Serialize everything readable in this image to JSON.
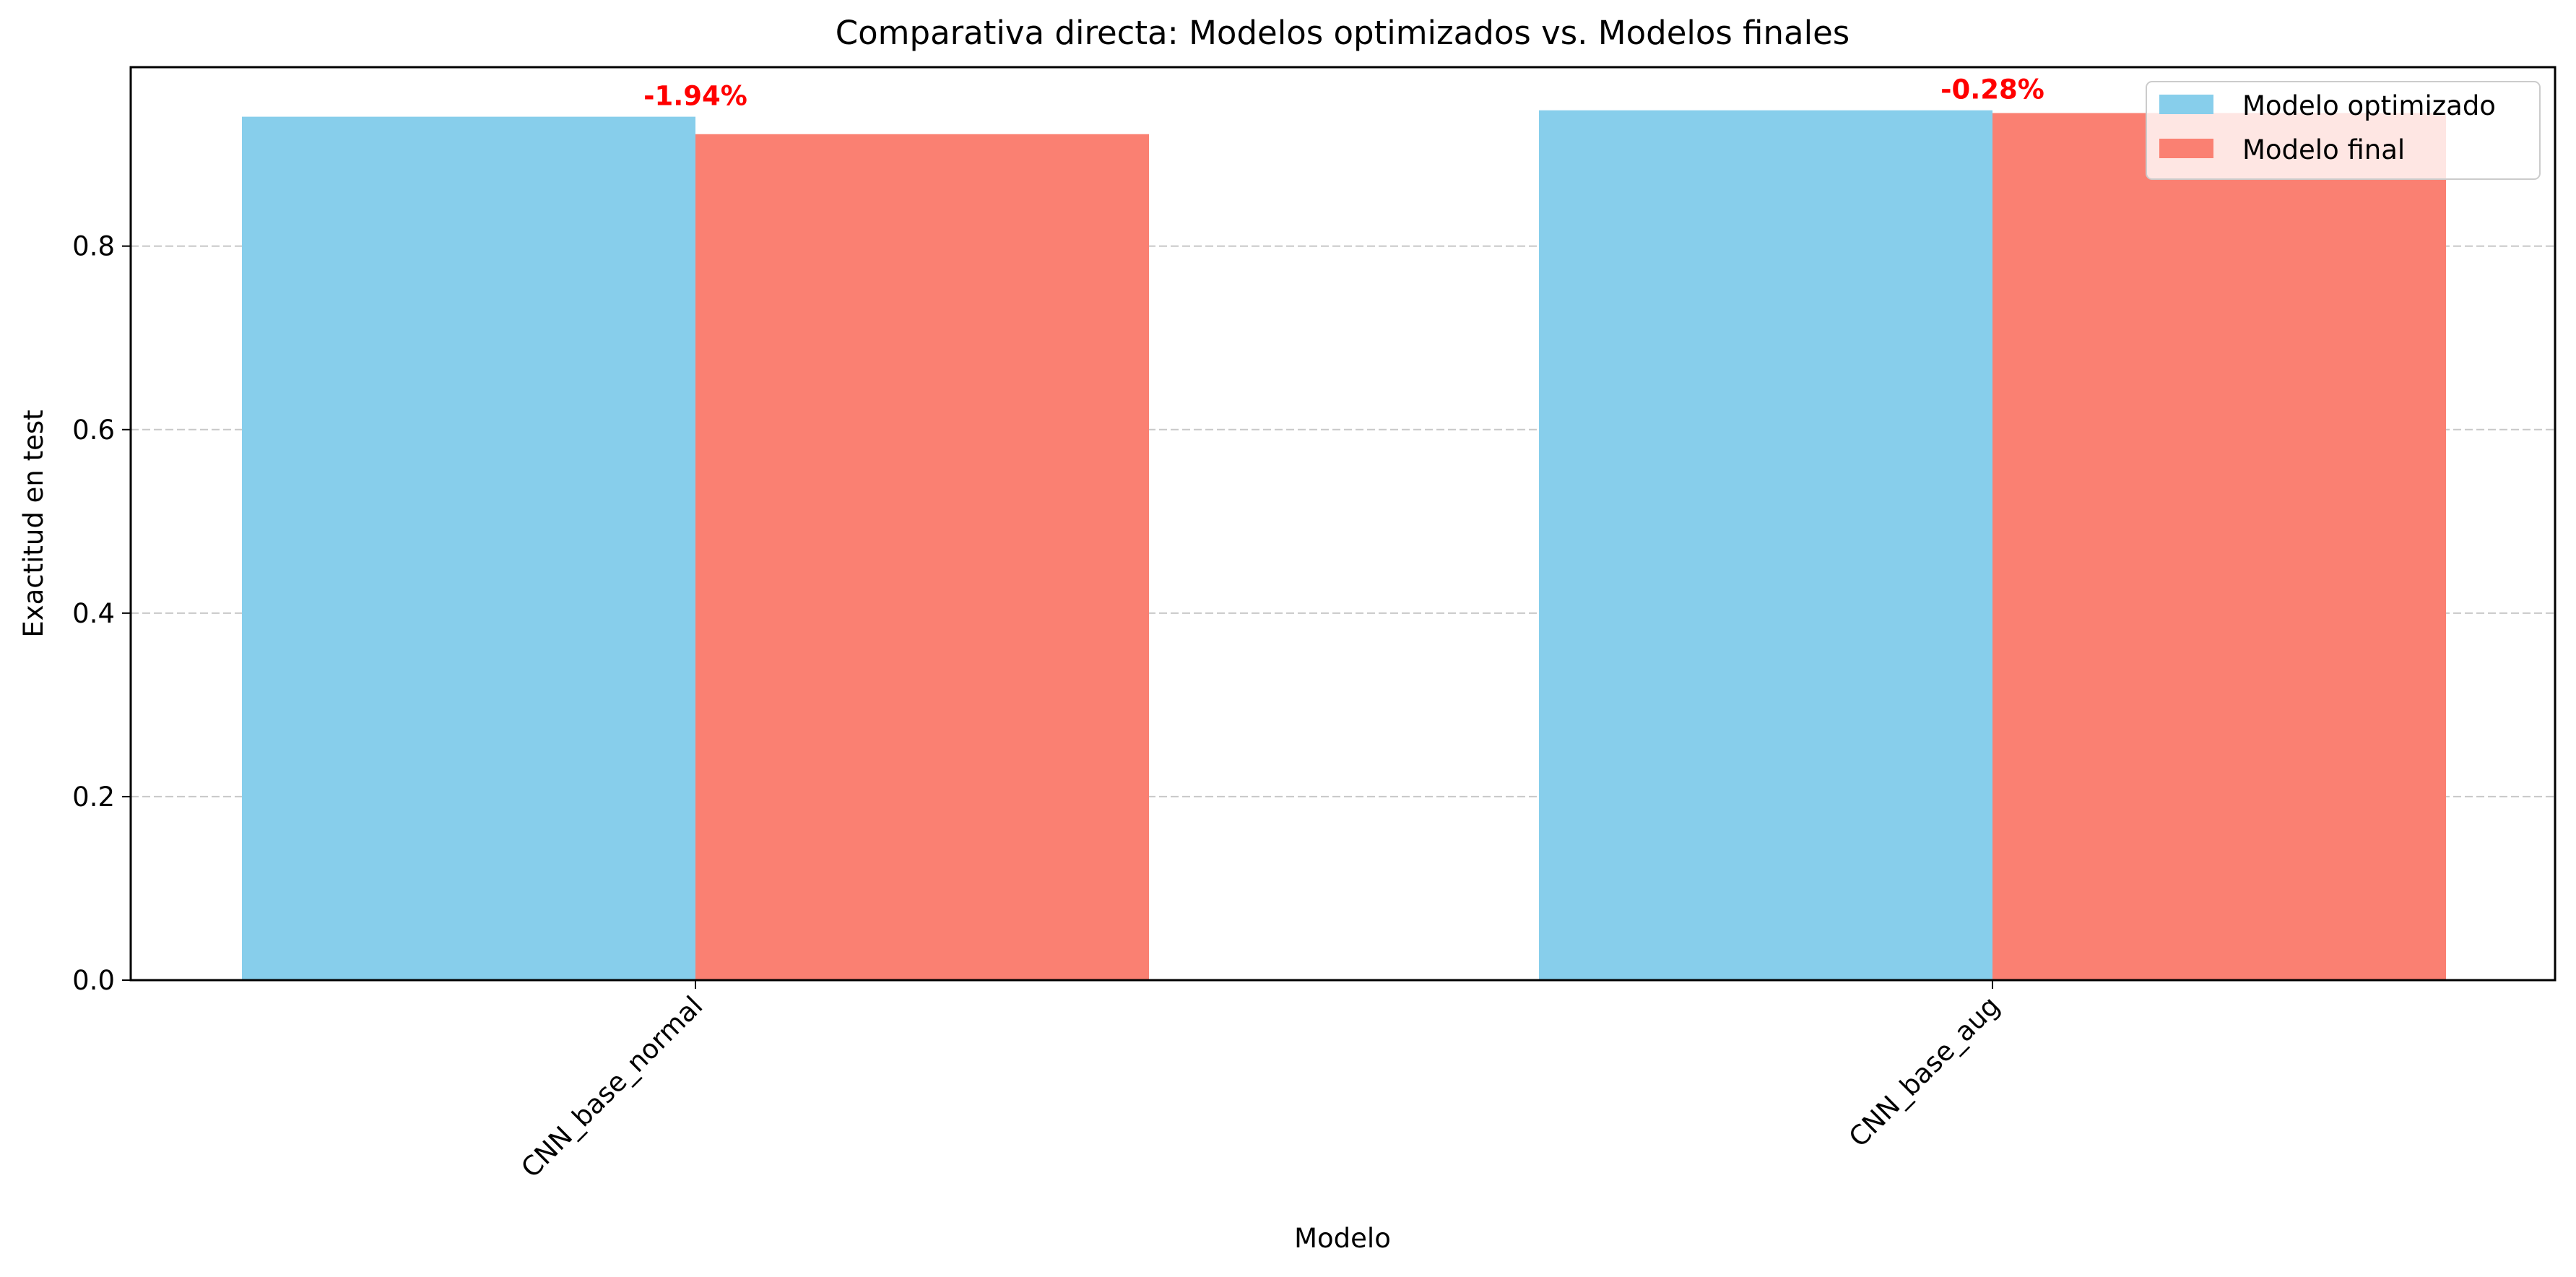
{
  "chart_data": {
    "type": "bar",
    "title": "Comparativa directa: Modelos optimizados vs. Modelos finales",
    "xlabel": "Modelo",
    "ylabel": "Exactitud en test",
    "categories": [
      "CNN_base_normal",
      "CNN_base_aug"
    ],
    "series": [
      {
        "name": "Modelo optimizado",
        "values": [
          0.941,
          0.948
        ],
        "color": "#87CEEB"
      },
      {
        "name": "Modelo final",
        "values": [
          0.922,
          0.945
        ],
        "color": "#FA8072"
      }
    ],
    "annotations": [
      "-1.94%",
      "-0.28%"
    ],
    "annotation_color": "#FF0000",
    "ylim": [
      0,
      0.995
    ],
    "yticks": [
      0.0,
      0.2,
      0.4,
      0.6,
      0.8
    ],
    "ytick_labels": [
      "0.0",
      "0.2",
      "0.4",
      "0.6",
      "0.8"
    ],
    "grid": "y dashed",
    "legend_position": "top-right"
  }
}
